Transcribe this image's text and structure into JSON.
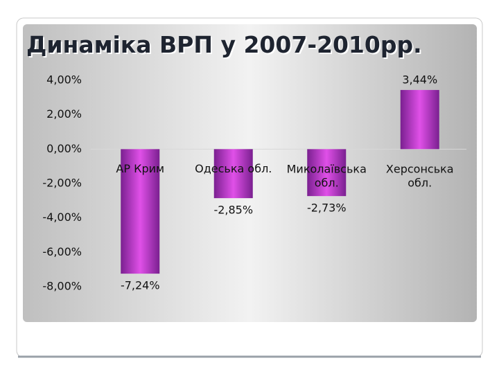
{
  "chart_data": {
    "type": "bar",
    "title": "Динаміка ВРП у 2007-2010рр.",
    "categories": [
      "АР Крим",
      "Одеська обл.",
      "Миколаївська обл.",
      "Херсонська обл."
    ],
    "values": [
      -7.24,
      -2.85,
      -2.73,
      3.44
    ],
    "value_labels": [
      "-7,24%",
      "-2,85%",
      "-2,73%",
      "3,44%"
    ],
    "color": "#b02fc0",
    "ylim": [
      -8,
      4
    ],
    "yticks": [
      {
        "value": -8,
        "label": "-8,00%"
      },
      {
        "value": -6,
        "label": "-6,00%"
      },
      {
        "value": -4,
        "label": "-4,00%"
      },
      {
        "value": -2,
        "label": "-2,00%"
      },
      {
        "value": 0,
        "label": "0,00%"
      },
      {
        "value": 2,
        "label": "2,00%"
      },
      {
        "value": 4,
        "label": "4,00%"
      }
    ],
    "grid": false
  }
}
